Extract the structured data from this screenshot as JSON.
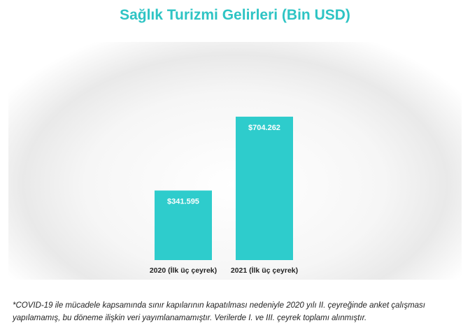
{
  "chart_data": {
    "type": "bar",
    "title": "Sağlık Turizmi Gelirleri (Bin USD)",
    "categories": [
      "2020 (İlk üç çeyrek)",
      "2021 (İlk üç çeyrek)"
    ],
    "values": [
      341595,
      704262
    ],
    "data_labels": [
      "$341.595",
      "$704.262"
    ],
    "ylim": [
      0,
      1030000
    ],
    "grid": false,
    "legend": "none",
    "xlabel": "",
    "ylabel": ""
  },
  "colors": {
    "bar": "#2ecccc",
    "title": "#2ec4c4",
    "label_text": "#ffffff"
  },
  "footnote": "*COVID-19 ile mücadele kapsamında sınır kapılarının kapatılması nedeniyle 2020 yılı II. çeyreğinde  anket çalışması yapılamamış,  bu döneme ilişkin veri yayımlanamamıştır. Verilerde I. ve III. çeyrek toplamı alınmıştır."
}
